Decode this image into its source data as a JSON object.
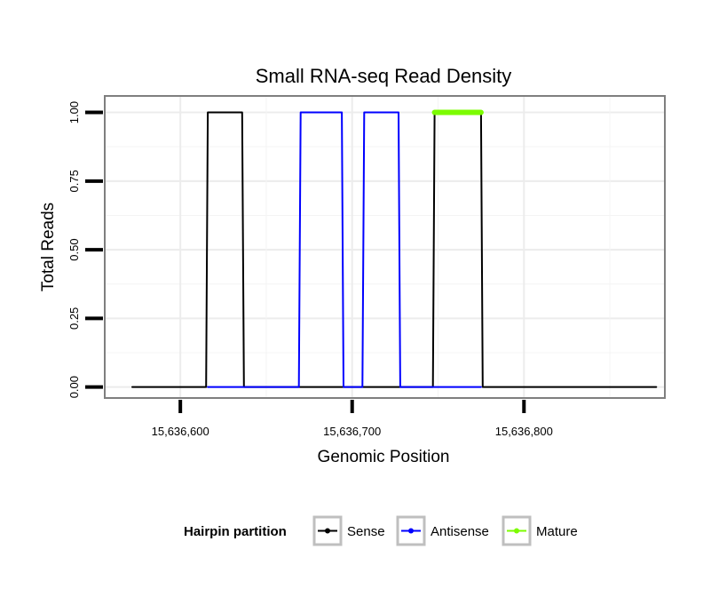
{
  "chart_data": {
    "type": "line",
    "title": "Small RNA-seq Read Density",
    "xlabel": "Genomic Position",
    "ylabel": "Total Reads",
    "xlim": [
      15636556,
      15636882
    ],
    "ylim": [
      -0.04,
      1.06
    ],
    "x_ticks": [
      {
        "value": 15636600,
        "label": "15,636,600"
      },
      {
        "value": 15636700,
        "label": "15,636,700"
      },
      {
        "value": 15636800,
        "label": "15,636,800"
      }
    ],
    "y_ticks": [
      {
        "value": 0.0,
        "label": "0.00"
      },
      {
        "value": 0.25,
        "label": "0.25"
      },
      {
        "value": 0.5,
        "label": "0.50"
      },
      {
        "value": 0.75,
        "label": "0.75"
      },
      {
        "value": 1.0,
        "label": "1.00"
      }
    ],
    "series": [
      {
        "name": "Sense",
        "color": "#000000",
        "line_width": 2,
        "x": [
          15636572,
          15636615,
          15636616,
          15636636,
          15636637,
          15636747,
          15636748,
          15636775,
          15636776,
          15636877
        ],
        "y": [
          0,
          0,
          1,
          1,
          0,
          0,
          1,
          1,
          0,
          0
        ]
      },
      {
        "name": "Antisense",
        "color": "#0000ff",
        "line_width": 2,
        "x": [
          15636616,
          15636669,
          15636670,
          15636694,
          15636695,
          15636706,
          15636707,
          15636727,
          15636728,
          15636747,
          15636748,
          15636775
        ],
        "y": [
          0,
          0,
          1,
          1,
          0,
          0,
          1,
          1,
          0,
          0,
          0,
          0
        ]
      },
      {
        "name": "Mature",
        "color": "#7cfc00",
        "line_width": 6,
        "x": [
          15636748,
          15636775
        ],
        "y": [
          1,
          1
        ]
      }
    ],
    "legend": {
      "title": "Hairpin partition",
      "position": "bottom",
      "items": [
        "Sense",
        "Antisense",
        "Mature"
      ]
    },
    "grid": true
  }
}
